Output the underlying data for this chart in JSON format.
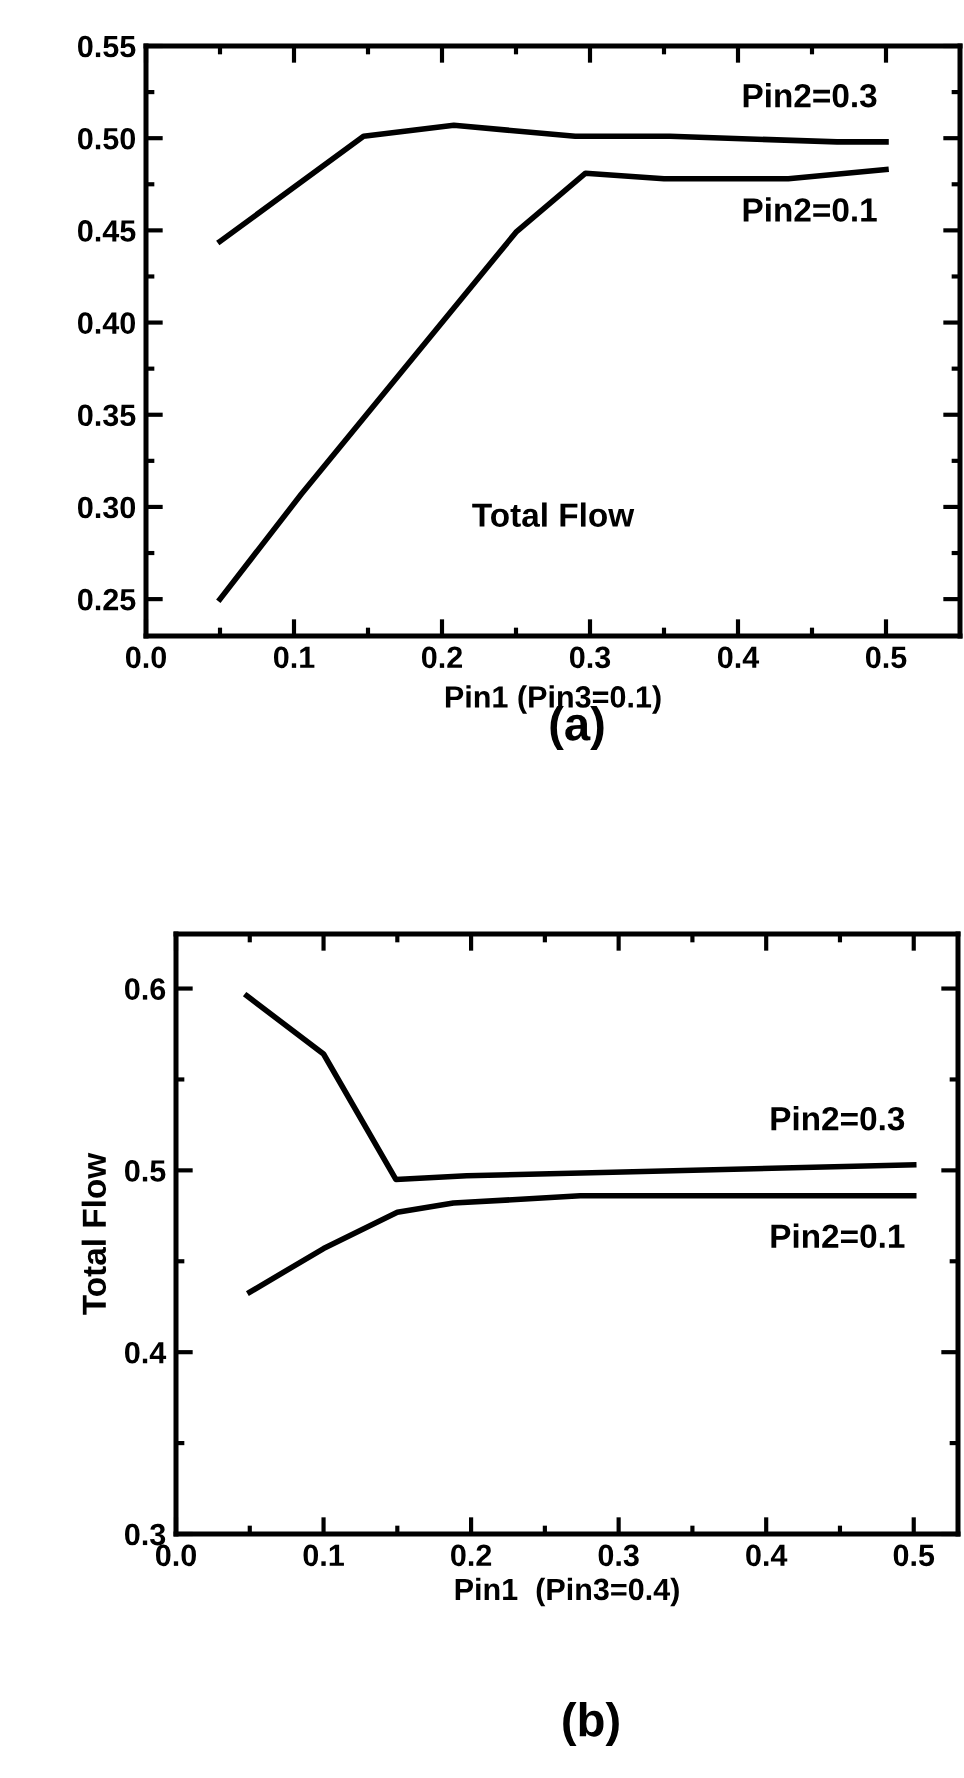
{
  "chart_data": [
    {
      "type": "line",
      "xlabel": "Pin1 (Pin3=0.1)",
      "annotations": [
        "Total Flow",
        "(a)"
      ],
      "xlim": [
        0,
        0.55
      ],
      "ylim": [
        0.23,
        0.55
      ],
      "xticks": [
        {
          "value": 0,
          "label": "0.0"
        },
        {
          "value": 0.05,
          "label": null
        },
        0.1,
        {
          "value": 0.15,
          "label": null
        },
        0.2,
        {
          "value": 0.25,
          "label": null
        },
        0.3,
        {
          "value": 0.35,
          "label": null
        },
        0.4,
        {
          "value": 0.45,
          "label": null
        },
        0.5
      ],
      "yticks": [
        0.25,
        {
          "value": 0.275,
          "label": null
        },
        {
          "value": 0.3,
          "label": "0.30"
        },
        {
          "value": 0.325,
          "label": null
        },
        0.35,
        {
          "value": 0.375,
          "label": null
        },
        {
          "value": 0.4,
          "label": "0.40"
        },
        {
          "value": 0.425,
          "label": null
        },
        0.45,
        {
          "value": 0.475,
          "label": null
        },
        {
          "value": 0.5,
          "label": "0.50"
        },
        {
          "value": 0.525,
          "label": null
        },
        0.55
      ],
      "grid": false,
      "legend": "right",
      "marker": "none",
      "line_style": "solid",
      "series": [
        {
          "name": "Pin2=0.3",
          "color": "#000000",
          "x": [
            0.05,
            0.147,
            0.208,
            0.29,
            0.354,
            0.467,
            0.5
          ],
          "values": [
            0.444,
            0.501,
            0.507,
            0.501,
            0.501,
            0.498,
            0.498
          ]
        },
        {
          "name": "Pin2=0.1",
          "color": "#000000",
          "x": [
            0.05,
            0.105,
            0.25,
            0.297,
            0.35,
            0.434,
            0.5
          ],
          "values": [
            0.25,
            0.307,
            0.449,
            0.481,
            0.478,
            0.478,
            0.483
          ]
        }
      ]
    },
    {
      "type": "line",
      "xlabel": "Pin1  (Pin3=0.4)",
      "ylabel": "Total Flow",
      "annotations": [
        "(b)"
      ],
      "xlim": [
        0,
        0.53
      ],
      "ylim": [
        0.3,
        0.63
      ],
      "xticks": [
        {
          "value": 0,
          "label": "0.0"
        },
        {
          "value": 0.05,
          "label": null
        },
        0.1,
        {
          "value": 0.15,
          "label": null
        },
        0.2,
        {
          "value": 0.25,
          "label": null
        },
        0.3,
        {
          "value": 0.35,
          "label": null
        },
        0.4,
        {
          "value": 0.45,
          "label": null
        },
        0.5
      ],
      "yticks": [
        0.3,
        {
          "value": 0.35,
          "label": null
        },
        0.4,
        {
          "value": 0.45,
          "label": null
        },
        0.5,
        {
          "value": 0.55,
          "label": null
        },
        0.6
      ],
      "grid": false,
      "legend": "right",
      "marker": "none",
      "line_style": "solid",
      "series": [
        {
          "name": "Pin2=0.3",
          "color": "#000000",
          "x": [
            0.048,
            0.1,
            0.149,
            0.197,
            0.296,
            0.5
          ],
          "values": [
            0.596,
            0.564,
            0.495,
            0.497,
            0.499,
            0.503
          ]
        },
        {
          "name": "Pin2=0.1",
          "color": "#000000",
          "x": [
            0.05,
            0.1,
            0.15,
            0.188,
            0.274,
            0.5
          ],
          "values": [
            0.433,
            0.457,
            0.477,
            0.482,
            0.486,
            0.486
          ]
        }
      ]
    }
  ]
}
